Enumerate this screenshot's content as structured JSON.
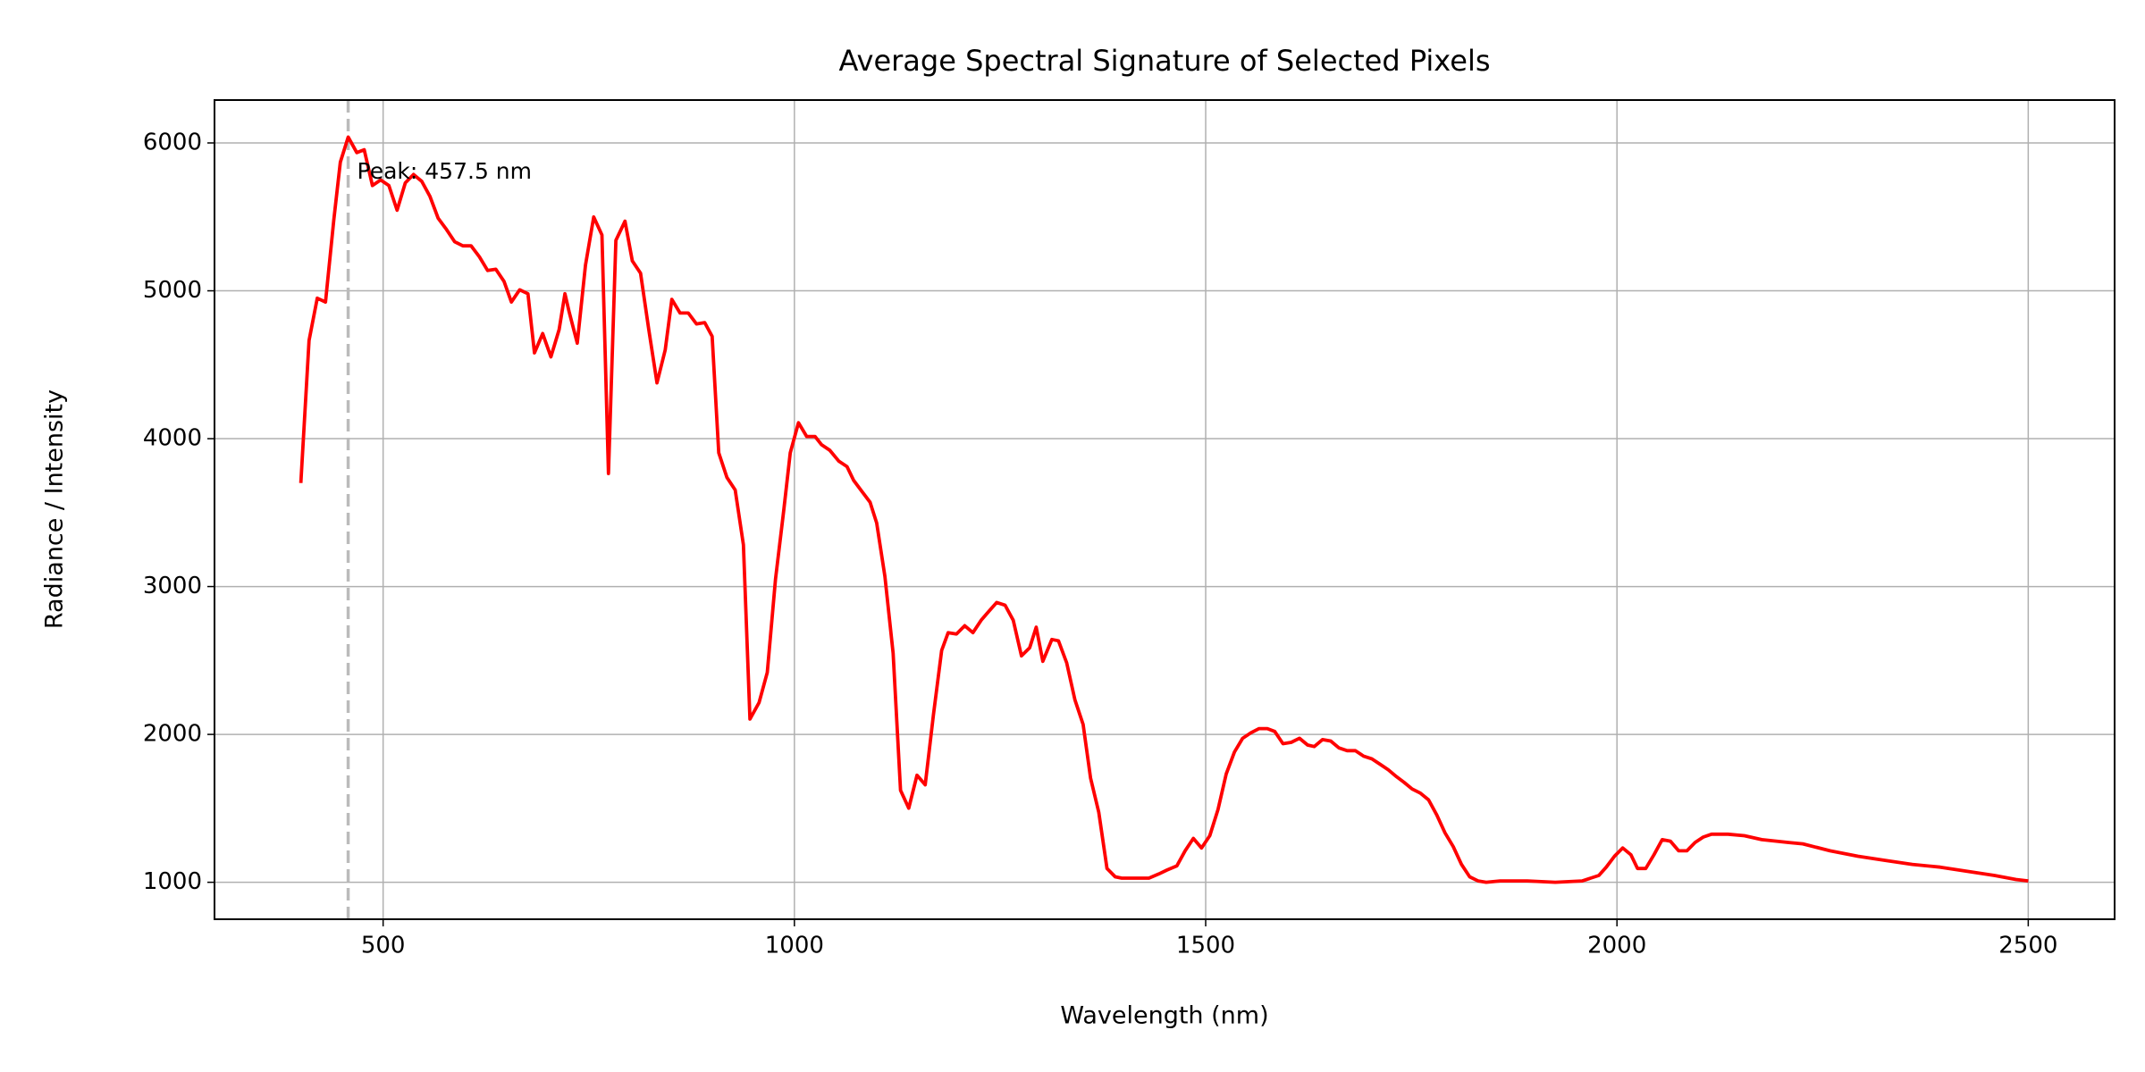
{
  "chart_data": {
    "type": "line",
    "title": "Average Spectral Signature of Selected Pixels",
    "x_label": "Wavelength (nm)",
    "y_label": "Radiance / Intensity",
    "xlim": [
      295,
      2605
    ],
    "ylim": [
      750,
      6290
    ],
    "xticks": [
      500,
      1000,
      1500,
      2000,
      2500
    ],
    "yticks": [
      1000,
      2000,
      3000,
      4000,
      5000,
      6000
    ],
    "grid": true,
    "peak": {
      "x": 457.5,
      "label": "Peak: 457.5 nm",
      "color": "#bbbbbb"
    },
    "series": [
      {
        "name": "Average Spectral Signature",
        "color": "#ff0000",
        "x": [
          400,
          410,
          420,
          430,
          440,
          448,
          457.5,
          468,
          477,
          487,
          497,
          507,
          517,
          527,
          537,
          547,
          557,
          567,
          577,
          587,
          597,
          607,
          617,
          627,
          637,
          647,
          656,
          666,
          676,
          684,
          694,
          704,
          714,
          721,
          726,
          736,
          746,
          756,
          766,
          774,
          783,
          794,
          803,
          813,
          823,
          833,
          843,
          851,
          861,
          871,
          881,
          891,
          900,
          908,
          918,
          928,
          938,
          946,
          957,
          967,
          977,
          987,
          995,
          1005,
          1015,
          1025,
          1033,
          1043,
          1054,
          1064,
          1072,
          1082,
          1092,
          1100,
          1110,
          1120,
          1129,
          1139,
          1149,
          1159,
          1169,
          1179,
          1187,
          1197,
          1207,
          1217,
          1227,
          1237,
          1246,
          1256,
          1266,
          1276,
          1286,
          1294,
          1302,
          1313,
          1321,
          1331,
          1341,
          1351,
          1360,
          1370,
          1380,
          1390,
          1398,
          1423,
          1431,
          1443,
          1453,
          1465,
          1475,
          1485,
          1495,
          1505,
          1515,
          1525,
          1535,
          1545,
          1555,
          1565,
          1575,
          1584,
          1594,
          1604,
          1614,
          1624,
          1632,
          1642,
          1652,
          1662,
          1672,
          1682,
          1692,
          1702,
          1712,
          1722,
          1732,
          1741,
          1751,
          1761,
          1771,
          1781,
          1791,
          1801,
          1811,
          1821,
          1831,
          1841,
          1858,
          1891,
          1925,
          1958,
          1968,
          1978,
          1987,
          1997,
          2007,
          2017,
          2025,
          2035,
          2045,
          2055,
          2065,
          2075,
          2085,
          2095,
          2105,
          2115,
          2135,
          2155,
          2176,
          2209,
          2226,
          2259,
          2293,
          2326,
          2359,
          2393,
          2426,
          2459,
          2485,
          2500
        ],
        "values": [
          3700,
          4664,
          4950,
          4924,
          5480,
          5870,
          6040,
          5935,
          5954,
          5712,
          5750,
          5712,
          5545,
          5730,
          5787,
          5740,
          5638,
          5490,
          5415,
          5332,
          5304,
          5304,
          5230,
          5137,
          5146,
          5063,
          4924,
          5007,
          4980,
          4580,
          4711,
          4553,
          4738,
          4980,
          4860,
          4646,
          5174,
          5499,
          5378,
          3764,
          5341,
          5471,
          5202,
          5119,
          4738,
          4377,
          4600,
          4942,
          4850,
          4850,
          4776,
          4785,
          4692,
          3904,
          3737,
          3653,
          3282,
          2104,
          2215,
          2419,
          3050,
          3514,
          3904,
          4108,
          4015,
          4015,
          3959,
          3922,
          3848,
          3811,
          3718,
          3644,
          3570,
          3430,
          3069,
          2549,
          1622,
          1501,
          1724,
          1659,
          2132,
          2568,
          2688,
          2679,
          2735,
          2688,
          2772,
          2837,
          2892,
          2874,
          2772,
          2531,
          2586,
          2725,
          2494,
          2642,
          2633,
          2484,
          2234,
          2067,
          1705,
          1473,
          1093,
          1037,
          1028,
          1028,
          1028,
          1056,
          1083,
          1111,
          1213,
          1297,
          1232,
          1315,
          1492,
          1733,
          1881,
          1974,
          2011,
          2039,
          2039,
          2020,
          1937,
          1946,
          1974,
          1928,
          1918,
          1965,
          1955,
          1909,
          1890,
          1890,
          1853,
          1835,
          1798,
          1761,
          1714,
          1677,
          1631,
          1603,
          1557,
          1455,
          1334,
          1241,
          1121,
          1037,
          1009,
          1000,
          1009,
          1009,
          1000,
          1009,
          1028,
          1046,
          1102,
          1176,
          1232,
          1186,
          1093,
          1093,
          1186,
          1288,
          1278,
          1213,
          1213,
          1269,
          1306,
          1325,
          1325,
          1315,
          1288,
          1269,
          1260,
          1213,
          1176,
          1148,
          1121,
          1102,
          1074,
          1046,
          1019,
          1009
        ]
      }
    ]
  }
}
